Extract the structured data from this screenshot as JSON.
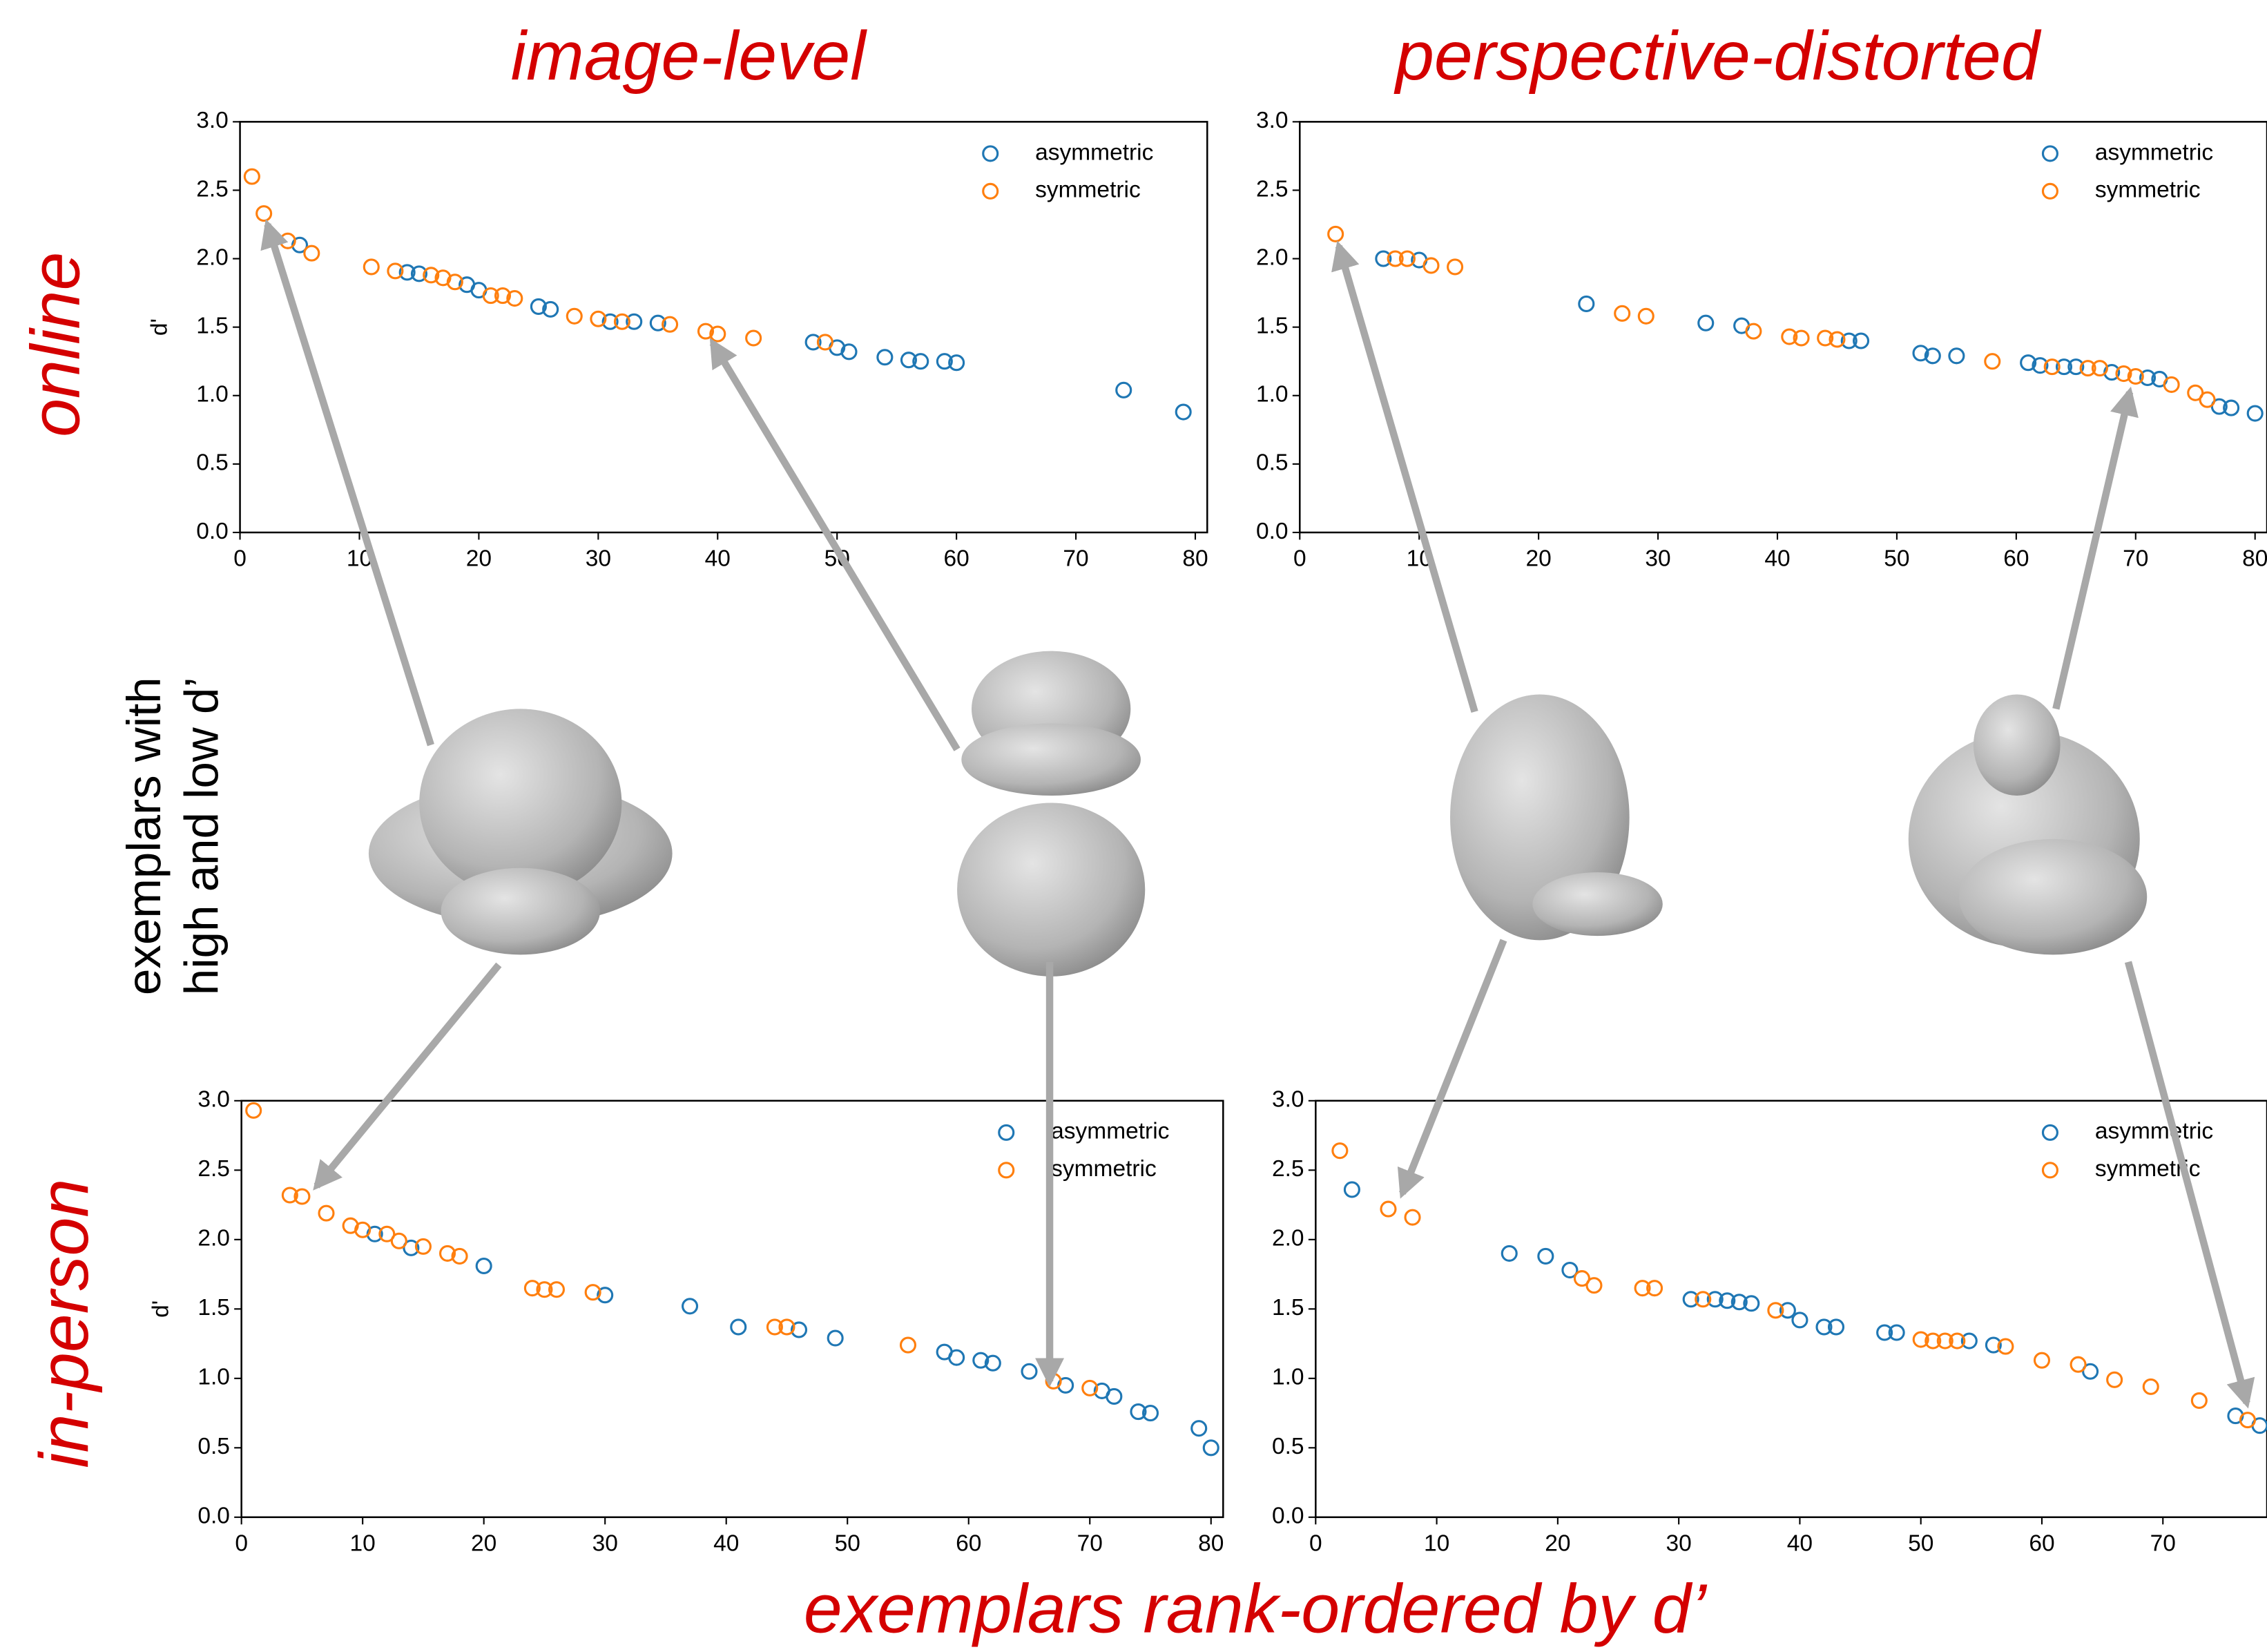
{
  "column_titles": [
    "image-level",
    "perspective-distorted"
  ],
  "row_labels": [
    "online",
    "in-person"
  ],
  "middle_label": [
    "exemplars with",
    "high and low d’"
  ],
  "footer": "exemplars rank-ordered by d’",
  "chart_data": [
    {
      "type": "scatter",
      "ylabel": "d'",
      "xlim": [
        0,
        81
      ],
      "ylim": [
        0,
        3
      ],
      "xticks": [
        0,
        10,
        20,
        30,
        40,
        50,
        60,
        70,
        80
      ],
      "yticks": [
        {
          "value": 0,
          "label": "0.0"
        },
        {
          "value": 0.5,
          "label": "0.5"
        },
        {
          "value": 1,
          "label": "1.0"
        },
        {
          "value": 1.5,
          "label": "1.5"
        },
        {
          "value": 2,
          "label": "2.0"
        },
        {
          "value": 2.5,
          "label": "2.5"
        },
        {
          "value": 3,
          "label": "3.0"
        }
      ],
      "legend": "upper right",
      "series": [
        {
          "name": "asymmetric",
          "color": "#1f77b4",
          "x": [
            5,
            14,
            15,
            19,
            20,
            25,
            26,
            31,
            33,
            35,
            48,
            50,
            51,
            54,
            56,
            57,
            59,
            60,
            74,
            79
          ],
          "values": [
            2.1,
            1.9,
            1.89,
            1.81,
            1.77,
            1.65,
            1.63,
            1.54,
            1.54,
            1.53,
            1.39,
            1.35,
            1.32,
            1.28,
            1.26,
            1.25,
            1.25,
            1.24,
            1.04,
            0.88
          ]
        },
        {
          "name": "symmetric",
          "color": "#ff7f0e",
          "x": [
            1,
            2,
            4,
            6,
            11,
            13,
            16,
            17,
            18,
            21,
            22,
            23,
            28,
            30,
            32,
            36,
            39,
            40,
            43,
            49
          ],
          "values": [
            2.6,
            2.33,
            2.13,
            2.04,
            1.94,
            1.91,
            1.88,
            1.86,
            1.83,
            1.73,
            1.73,
            1.71,
            1.58,
            1.56,
            1.54,
            1.52,
            1.47,
            1.45,
            1.42,
            1.39
          ]
        }
      ]
    },
    {
      "type": "scatter",
      "xlim": [
        0,
        81
      ],
      "ylim": [
        0,
        3
      ],
      "xticks": [
        0,
        10,
        20,
        30,
        40,
        50,
        60,
        70,
        80
      ],
      "yticks": [
        {
          "value": 0,
          "label": "0.0"
        },
        {
          "value": 0.5,
          "label": "0.5"
        },
        {
          "value": 1,
          "label": "1.0"
        },
        {
          "value": 1.5,
          "label": "1.5"
        },
        {
          "value": 2,
          "label": "2.0"
        },
        {
          "value": 2.5,
          "label": "2.5"
        },
        {
          "value": 3,
          "label": "3.0"
        }
      ],
      "legend": "upper right",
      "series": [
        {
          "name": "asymmetric",
          "color": "#1f77b4",
          "x": [
            7,
            10,
            24,
            34,
            37,
            46,
            47,
            52,
            53,
            55,
            61,
            62,
            64,
            65,
            68,
            71,
            72,
            77,
            78,
            80
          ],
          "values": [
            2.0,
            1.99,
            1.67,
            1.53,
            1.51,
            1.4,
            1.4,
            1.31,
            1.29,
            1.29,
            1.24,
            1.22,
            1.21,
            1.21,
            1.17,
            1.13,
            1.12,
            0.92,
            0.91,
            0.87
          ]
        },
        {
          "name": "symmetric",
          "color": "#ff7f0e",
          "x": [
            3,
            8,
            9,
            11,
            13,
            27,
            29,
            38,
            41,
            42,
            44,
            45,
            58,
            63,
            66,
            67,
            69,
            70,
            73,
            75,
            76
          ],
          "values": [
            2.18,
            2.0,
            2.0,
            1.95,
            1.94,
            1.6,
            1.58,
            1.47,
            1.43,
            1.42,
            1.42,
            1.41,
            1.25,
            1.21,
            1.2,
            1.2,
            1.16,
            1.14,
            1.08,
            1.02,
            0.97
          ]
        }
      ]
    },
    {
      "type": "scatter",
      "ylabel": "d'",
      "xlim": [
        0,
        81
      ],
      "ylim": [
        0,
        3
      ],
      "xticks": [
        0,
        10,
        20,
        30,
        40,
        50,
        60,
        70,
        80
      ],
      "yticks": [
        {
          "value": 0,
          "label": "0.0"
        },
        {
          "value": 0.5,
          "label": "0.5"
        },
        {
          "value": 1,
          "label": "1.0"
        },
        {
          "value": 1.5,
          "label": "1.5"
        },
        {
          "value": 2,
          "label": "2.0"
        },
        {
          "value": 2.5,
          "label": "2.5"
        },
        {
          "value": 3,
          "label": "3.0"
        }
      ],
      "legend": "upper right",
      "series": [
        {
          "name": "asymmetric",
          "color": "#1f77b4",
          "x": [
            11,
            14,
            20,
            30,
            37,
            41,
            46,
            49,
            58,
            59,
            61,
            62,
            65,
            68,
            71,
            72,
            74,
            75,
            79,
            80
          ],
          "values": [
            2.04,
            1.94,
            1.81,
            1.6,
            1.52,
            1.37,
            1.35,
            1.29,
            1.19,
            1.15,
            1.13,
            1.11,
            1.05,
            0.95,
            0.91,
            0.87,
            0.76,
            0.75,
            0.64,
            0.5
          ]
        },
        {
          "name": "symmetric",
          "color": "#ff7f0e",
          "x": [
            1,
            4,
            5,
            7,
            9,
            10,
            12,
            13,
            15,
            17,
            18,
            24,
            25,
            26,
            29,
            44,
            45,
            55,
            67,
            70
          ],
          "values": [
            2.93,
            2.32,
            2.31,
            2.19,
            2.1,
            2.07,
            2.04,
            1.99,
            1.95,
            1.9,
            1.88,
            1.65,
            1.64,
            1.64,
            1.62,
            1.37,
            1.37,
            1.24,
            0.98,
            0.93
          ]
        }
      ]
    },
    {
      "type": "scatter",
      "xlim": [
        0,
        78.6
      ],
      "ylim": [
        0,
        3
      ],
      "xticks": [
        0,
        10,
        20,
        30,
        40,
        50,
        60,
        70
      ],
      "yticks": [
        {
          "value": 0,
          "label": "0.0"
        },
        {
          "value": 0.5,
          "label": "0.5"
        },
        {
          "value": 1,
          "label": "1.0"
        },
        {
          "value": 1.5,
          "label": "1.5"
        },
        {
          "value": 2,
          "label": "2.0"
        },
        {
          "value": 2.5,
          "label": "2.5"
        },
        {
          "value": 3,
          "label": "3.0"
        }
      ],
      "legend": "upper right",
      "series": [
        {
          "name": "asymmetric",
          "color": "#1f77b4",
          "x": [
            3,
            16,
            19,
            21,
            31,
            33,
            34,
            35,
            36,
            39,
            40,
            42,
            43,
            47,
            48,
            54,
            56,
            64,
            76,
            78
          ],
          "values": [
            2.36,
            1.9,
            1.88,
            1.78,
            1.57,
            1.57,
            1.56,
            1.55,
            1.54,
            1.49,
            1.42,
            1.37,
            1.37,
            1.33,
            1.33,
            1.27,
            1.24,
            1.05,
            0.73,
            0.66
          ]
        },
        {
          "name": "symmetric",
          "color": "#ff7f0e",
          "x": [
            2,
            6,
            8,
            22,
            23,
            27,
            28,
            32,
            38,
            50,
            51,
            52,
            53,
            57,
            60,
            63,
            66,
            69,
            73,
            77
          ],
          "values": [
            2.64,
            2.22,
            2.16,
            1.72,
            1.67,
            1.65,
            1.65,
            1.57,
            1.49,
            1.28,
            1.27,
            1.27,
            1.27,
            1.23,
            1.13,
            1.1,
            0.99,
            0.94,
            0.84,
            0.7
          ]
        }
      ]
    }
  ]
}
